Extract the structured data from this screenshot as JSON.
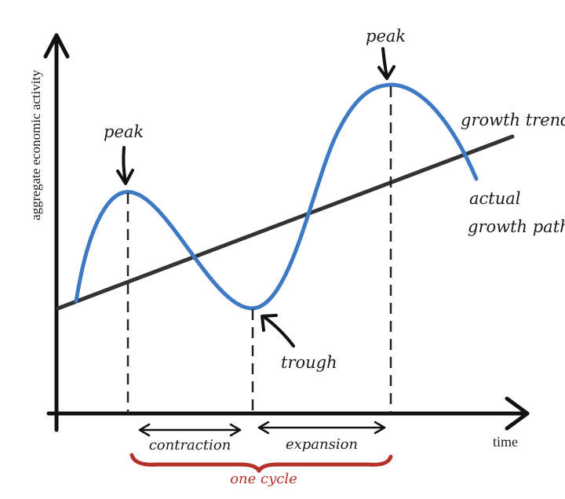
{
  "diagram": {
    "y_axis_label": "aggregate economic activity",
    "x_axis_label": "time",
    "peak_1_label": "peak",
    "peak_2_label": "peak",
    "trough_label": "trough",
    "trend_label": "growth trend",
    "actual_label_line1": "actual",
    "actual_label_line2": "growth path",
    "contraction_label": "contraction",
    "expansion_label": "expansion",
    "cycle_label": "one cycle"
  },
  "colors": {
    "actual_path": "#3e79c4",
    "trend_line": "#333333",
    "axes": "#111111",
    "cycle_brace": "#b5312b"
  }
}
